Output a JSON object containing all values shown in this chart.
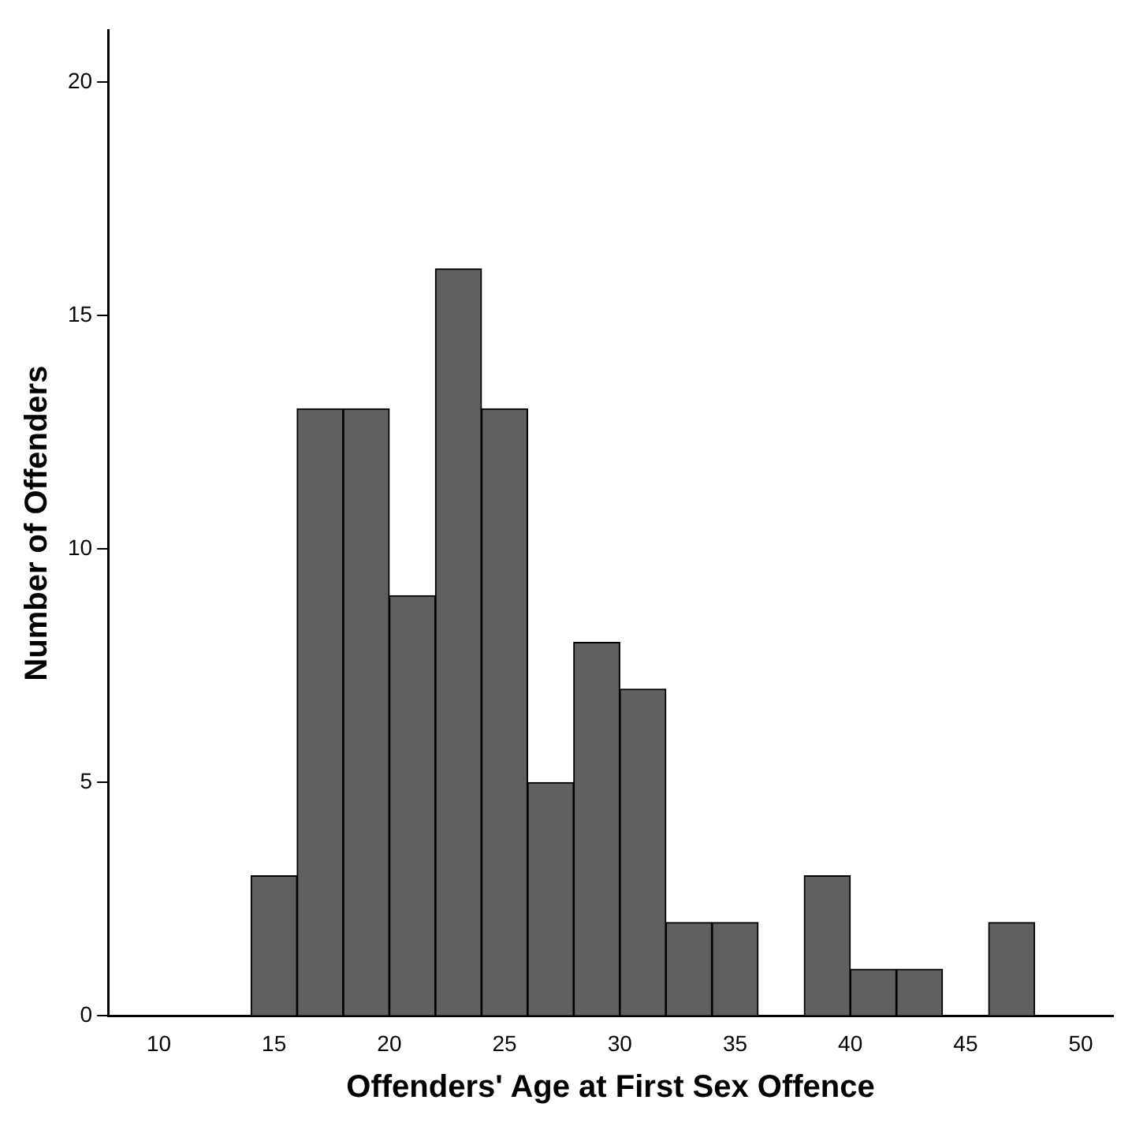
{
  "chart_data": {
    "type": "histogram",
    "xlabel": "Offenders' Age at First Sex Offence",
    "ylabel": "Number of Offenders",
    "bins": [
      14,
      16,
      18,
      20,
      22,
      24,
      26,
      28,
      30,
      32,
      34,
      36,
      38,
      40,
      42,
      44,
      46,
      48
    ],
    "values": [
      3,
      13,
      13,
      9,
      16,
      13,
      5,
      8,
      7,
      2,
      2,
      0,
      3,
      1,
      1,
      0,
      2
    ],
    "color": "#606060",
    "xlim": [
      7.8,
      51.4
    ],
    "xticks": [
      10,
      15,
      20,
      25,
      30,
      35,
      40,
      45,
      50
    ],
    "ylim": [
      0,
      21.1
    ],
    "yticks": [
      0,
      5,
      10,
      15,
      20
    ],
    "legend": false
  }
}
